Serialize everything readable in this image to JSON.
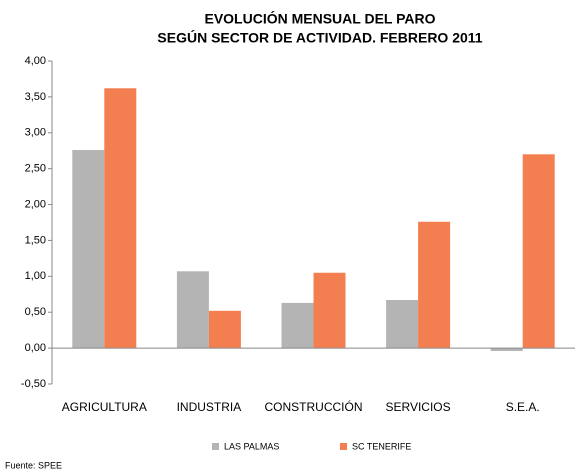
{
  "chart_data": {
    "type": "bar",
    "title": [
      "EVOLUCIÓN MENSUAL DEL PARO",
      "SEGÚN SECTOR DE ACTIVIDAD. FEBRERO 2011"
    ],
    "categories": [
      "AGRICULTURA",
      "INDUSTRIA",
      "CONSTRUCCIÓN",
      "SERVICIOS",
      "S.E.A."
    ],
    "series": [
      {
        "name": "LAS PALMAS",
        "color": "#b4b4b4",
        "values": [
          2.76,
          1.07,
          0.63,
          0.67,
          -0.04
        ]
      },
      {
        "name": "SC TENERIFE",
        "color": "#f37f50",
        "values": [
          3.62,
          0.52,
          1.05,
          1.76,
          2.7
        ]
      }
    ],
    "ylim": [
      -0.5,
      4.0
    ],
    "yticks": [
      {
        "value": -0.5,
        "label": "-0,50"
      },
      {
        "value": 0,
        "label": "0,00"
      },
      {
        "value": 0.5,
        "label": "0,50"
      },
      {
        "value": 1.0,
        "label": "1,00"
      },
      {
        "value": 1.5,
        "label": "1,50"
      },
      {
        "value": 2.0,
        "label": "2,00"
      },
      {
        "value": 2.5,
        "label": "2,50"
      },
      {
        "value": 3.0,
        "label": "3,00"
      },
      {
        "value": 3.5,
        "label": "3,50"
      },
      {
        "value": 4.0,
        "label": "4,00"
      }
    ],
    "grid": false,
    "legend": "bottom",
    "source": "Fuente: SPEE"
  }
}
